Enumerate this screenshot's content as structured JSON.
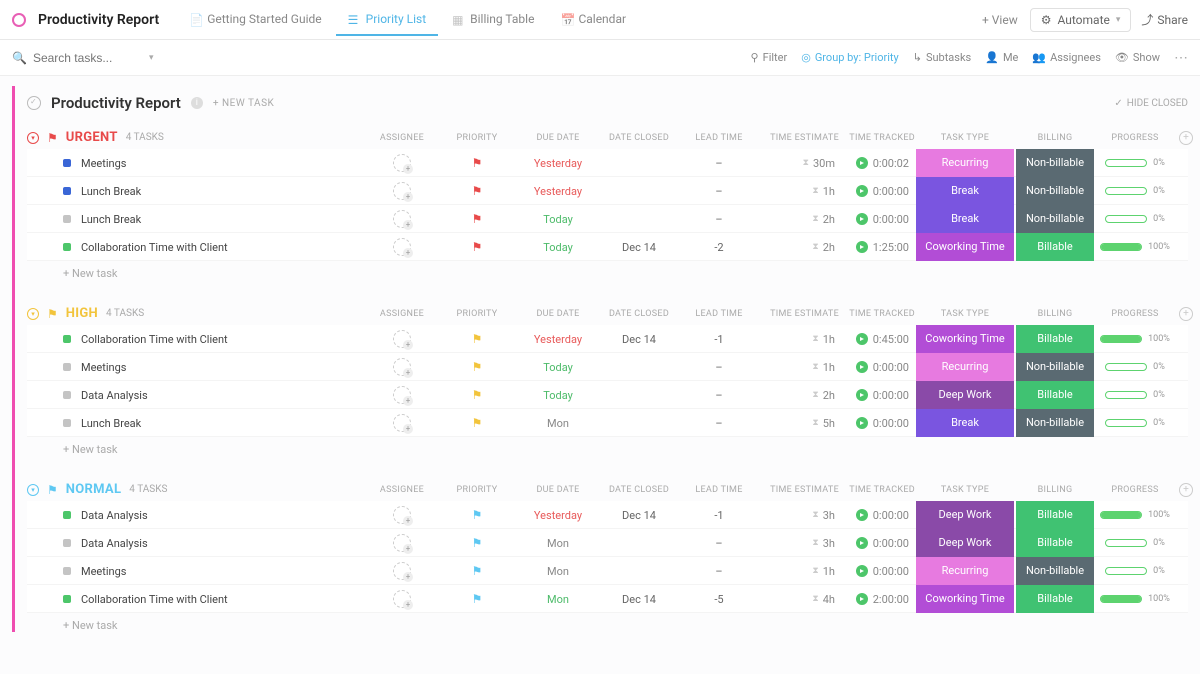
{
  "header": {
    "title": "Productivity Report",
    "tabs": [
      {
        "label": "Getting Started Guide",
        "active": false
      },
      {
        "label": "Priority List",
        "active": true
      },
      {
        "label": "Billing Table",
        "active": false
      },
      {
        "label": "Calendar",
        "active": false
      }
    ],
    "add_view": "+ View",
    "automate": "Automate",
    "share": "Share"
  },
  "toolbar": {
    "search_placeholder": "Search tasks...",
    "filter": "Filter",
    "groupby": "Group by: Priority",
    "subtasks": "Subtasks",
    "me": "Me",
    "assignees": "Assignees",
    "show": "Show"
  },
  "list": {
    "title": "Productivity Report",
    "new_task": "+ NEW TASK",
    "hide_closed": "HIDE CLOSED"
  },
  "columns": {
    "assignee": "ASSIGNEE",
    "priority": "PRIORITY",
    "due_date": "DUE DATE",
    "date_closed": "DATE CLOSED",
    "lead_time": "LEAD TIME",
    "time_estimate": "TIME ESTIMATE",
    "time_tracked": "TIME TRACKED",
    "task_type": "TASK TYPE",
    "billing": "BILLING",
    "progress": "PROGRESS"
  },
  "new_task_row": "+ New task",
  "colors": {
    "urgent": "#e84a4a",
    "high": "#f2c43c",
    "normal": "#5ec8f2",
    "recurring": "#e77ae0",
    "break": "#7a55e0",
    "coworking": "#b24dd6",
    "deepwork": "#8a4aa8",
    "billable": "#40c272",
    "nonbillable": "#5a6a72",
    "sq_blue": "#3a66d6",
    "sq_grey": "#c4c4c4",
    "sq_green": "#4dc66a",
    "progress_green": "#5dd36f"
  },
  "groups": [
    {
      "name": "URGENT",
      "count": "4 TASKS",
      "cls": "urgent",
      "flag": "⚑",
      "tasks": [
        {
          "sq": "sq_blue",
          "name": "Meetings",
          "flag": "urgent",
          "due": "Yesterday",
          "due_cls": "due-yesterday",
          "closed": "",
          "lead": "–",
          "est": "30m",
          "tracked": "0:00:02",
          "type": "Recurring",
          "type_c": "recurring",
          "bill": "Non-billable",
          "bill_c": "nonbillable",
          "prog": 0
        },
        {
          "sq": "sq_blue",
          "name": "Lunch Break",
          "flag": "urgent",
          "due": "Yesterday",
          "due_cls": "due-yesterday",
          "closed": "",
          "lead": "–",
          "est": "1h",
          "tracked": "0:00:00",
          "type": "Break",
          "type_c": "break",
          "bill": "Non-billable",
          "bill_c": "nonbillable",
          "prog": 0
        },
        {
          "sq": "sq_grey",
          "name": "Lunch Break",
          "flag": "urgent",
          "due": "Today",
          "due_cls": "due-today",
          "closed": "",
          "lead": "–",
          "est": "2h",
          "tracked": "0:00:00",
          "type": "Break",
          "type_c": "break",
          "bill": "Non-billable",
          "bill_c": "nonbillable",
          "prog": 0
        },
        {
          "sq": "sq_green",
          "name": "Collaboration Time with Client",
          "flag": "urgent",
          "due": "Today",
          "due_cls": "due-today",
          "closed": "Dec 14",
          "lead": "-2",
          "est": "2h",
          "tracked": "1:25:00",
          "type": "Coworking Time",
          "type_c": "coworking",
          "bill": "Billable",
          "bill_c": "billable",
          "prog": 100
        }
      ]
    },
    {
      "name": "HIGH",
      "count": "4 TASKS",
      "cls": "high",
      "flag": "⚑",
      "tasks": [
        {
          "sq": "sq_green",
          "name": "Collaboration Time with Client",
          "flag": "high",
          "due": "Yesterday",
          "due_cls": "due-yesterday",
          "closed": "Dec 14",
          "lead": "-1",
          "est": "1h",
          "tracked": "0:45:00",
          "type": "Coworking Time",
          "type_c": "coworking",
          "bill": "Billable",
          "bill_c": "billable",
          "prog": 100
        },
        {
          "sq": "sq_grey",
          "name": "Meetings",
          "flag": "high",
          "due": "Today",
          "due_cls": "due-today",
          "closed": "",
          "lead": "–",
          "est": "1h",
          "tracked": "0:00:00",
          "type": "Recurring",
          "type_c": "recurring",
          "bill": "Non-billable",
          "bill_c": "nonbillable",
          "prog": 0
        },
        {
          "sq": "sq_grey",
          "name": "Data Analysis",
          "flag": "high",
          "due": "Today",
          "due_cls": "due-today",
          "closed": "",
          "lead": "–",
          "est": "2h",
          "tracked": "0:00:00",
          "type": "Deep Work",
          "type_c": "deepwork",
          "bill": "Billable",
          "bill_c": "billable",
          "prog": 0
        },
        {
          "sq": "sq_grey",
          "name": "Lunch Break",
          "flag": "high",
          "due": "Mon",
          "due_cls": "due-mon",
          "closed": "",
          "lead": "–",
          "est": "5h",
          "tracked": "0:00:00",
          "type": "Break",
          "type_c": "break",
          "bill": "Non-billable",
          "bill_c": "nonbillable",
          "prog": 0
        }
      ]
    },
    {
      "name": "NORMAL",
      "count": "4 TASKS",
      "cls": "normal",
      "flag": "⚑",
      "tasks": [
        {
          "sq": "sq_green",
          "name": "Data Analysis",
          "flag": "normal",
          "due": "Yesterday",
          "due_cls": "due-yesterday",
          "closed": "Dec 14",
          "lead": "-1",
          "est": "3h",
          "tracked": "0:00:00",
          "type": "Deep Work",
          "type_c": "deepwork",
          "bill": "Billable",
          "bill_c": "billable",
          "prog": 100
        },
        {
          "sq": "sq_grey",
          "name": "Data Analysis",
          "flag": "normal",
          "due": "Mon",
          "due_cls": "due-mon",
          "closed": "",
          "lead": "–",
          "est": "3h",
          "tracked": "0:00:00",
          "type": "Deep Work",
          "type_c": "deepwork",
          "bill": "Billable",
          "bill_c": "billable",
          "prog": 0
        },
        {
          "sq": "sq_grey",
          "name": "Meetings",
          "flag": "normal",
          "due": "Mon",
          "due_cls": "due-mon",
          "closed": "",
          "lead": "–",
          "est": "1h",
          "tracked": "0:00:00",
          "type": "Recurring",
          "type_c": "recurring",
          "bill": "Non-billable",
          "bill_c": "nonbillable",
          "prog": 0
        },
        {
          "sq": "sq_green",
          "name": "Collaboration Time with Client",
          "flag": "normal",
          "due": "Mon",
          "due_cls": "due-today",
          "closed": "Dec 14",
          "lead": "-5",
          "est": "4h",
          "tracked": "2:00:00",
          "type": "Coworking Time",
          "type_c": "coworking",
          "bill": "Billable",
          "bill_c": "billable",
          "prog": 100
        }
      ]
    }
  ]
}
